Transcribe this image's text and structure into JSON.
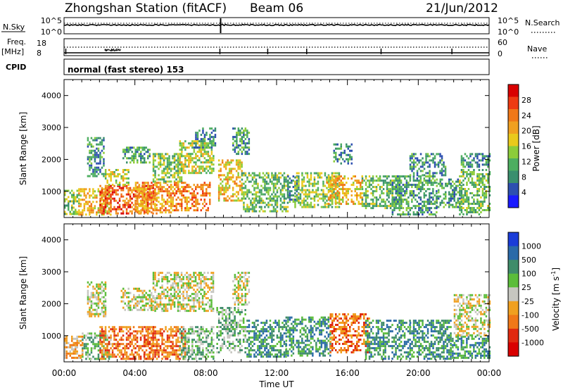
{
  "header": {
    "station": "Zhongshan Station (fitACF)",
    "beam": "Beam 06",
    "date": "21/Jun/2012"
  },
  "top_panels": {
    "nsky_label": "N.Sky",
    "nsky_ticks": [
      "10^5",
      "10^0"
    ],
    "nsearch_label": "N.Search",
    "nsearch_ticks": [
      "10^5",
      "10^0"
    ],
    "freq_label": "Freq.",
    "freq_unit": "[MHz]",
    "freq_ticks": [
      "18",
      "8"
    ],
    "nave_label": "Nave",
    "nave_ticks": [
      "60",
      "0"
    ],
    "cpid_label": "CPID",
    "cpid_value": "normal (fast stereo) 153"
  },
  "chart_data": [
    {
      "type": "heatmap",
      "name": "power",
      "ylabel": "Slant Range [km]",
      "ylim": [
        180,
        4500
      ],
      "yticks": [
        "4000",
        "3000",
        "2000",
        "1000"
      ],
      "xlim_hours": [
        0,
        24
      ],
      "colorbar": {
        "label": "Power [dB]",
        "ticks": [
          "28",
          "24",
          "20",
          "16",
          "12",
          "8",
          "4"
        ],
        "range": [
          0,
          30
        ],
        "colors": [
          "#1a1aff",
          "#2d4fb0",
          "#3a8f6e",
          "#4dae60",
          "#8ccc3a",
          "#e9c91c",
          "#f0a020",
          "#f07818",
          "#ee3a12",
          "#d90000"
        ]
      },
      "echo_regions": [
        {
          "t": [
            0.0,
            0.8
          ],
          "r": [
            300,
            1050
          ],
          "level": 12
        },
        {
          "t": [
            0.8,
            2.6
          ],
          "r": [
            300,
            1100
          ],
          "level": 18
        },
        {
          "t": [
            1.3,
            2.2
          ],
          "r": [
            1500,
            2700
          ],
          "level": 8
        },
        {
          "t": [
            2.0,
            5.2
          ],
          "r": [
            320,
            1200
          ],
          "level": 24
        },
        {
          "t": [
            2.3,
            3.6
          ],
          "r": [
            1200,
            1700
          ],
          "level": 14
        },
        {
          "t": [
            3.3,
            4.8
          ],
          "r": [
            1900,
            2400
          ],
          "level": 9
        },
        {
          "t": [
            4.0,
            6.0
          ],
          "r": [
            350,
            1300
          ],
          "level": 20
        },
        {
          "t": [
            5.0,
            6.6
          ],
          "r": [
            1300,
            2200
          ],
          "level": 12
        },
        {
          "t": [
            6.0,
            8.2
          ],
          "r": [
            400,
            1300
          ],
          "level": 22
        },
        {
          "t": [
            6.5,
            8.4
          ],
          "r": [
            1600,
            2600
          ],
          "level": 15
        },
        {
          "t": [
            7.3,
            8.5
          ],
          "r": [
            2400,
            3000
          ],
          "level": 8
        },
        {
          "t": [
            8.7,
            10.0
          ],
          "r": [
            700,
            2000
          ],
          "level": 18
        },
        {
          "t": [
            9.5,
            10.4
          ],
          "r": [
            2200,
            3000
          ],
          "level": 9
        },
        {
          "t": [
            10.0,
            12.6
          ],
          "r": [
            350,
            1600
          ],
          "level": 11
        },
        {
          "t": [
            12.6,
            13.2
          ],
          "r": [
            700,
            1500
          ],
          "level": 8
        },
        {
          "t": [
            13.0,
            15.5
          ],
          "r": [
            500,
            1600
          ],
          "level": 13
        },
        {
          "t": [
            14.8,
            16.8
          ],
          "r": [
            600,
            1500
          ],
          "level": 19
        },
        {
          "t": [
            15.2,
            16.2
          ],
          "r": [
            1900,
            2500
          ],
          "level": 8
        },
        {
          "t": [
            16.8,
            19.0
          ],
          "r": [
            450,
            1500
          ],
          "level": 11
        },
        {
          "t": [
            18.5,
            21.0
          ],
          "r": [
            300,
            1500
          ],
          "level": 9
        },
        {
          "t": [
            19.5,
            21.5
          ],
          "r": [
            1500,
            2200
          ],
          "level": 8
        },
        {
          "t": [
            21.0,
            22.4
          ],
          "r": [
            500,
            1400
          ],
          "level": 9
        },
        {
          "t": [
            22.3,
            24.0
          ],
          "r": [
            300,
            1700
          ],
          "level": 11
        },
        {
          "t": [
            22.4,
            24.0
          ],
          "r": [
            1800,
            2200
          ],
          "level": 8
        }
      ]
    },
    {
      "type": "heatmap",
      "name": "velocity",
      "ylabel": "Slant Range [km]",
      "ylim": [
        180,
        4500
      ],
      "yticks": [
        "4000",
        "3000",
        "2000",
        "1000"
      ],
      "xlim_hours": [
        0,
        24
      ],
      "colorbar": {
        "label": "Velocity [m s^-1]",
        "label_unit": "m s",
        "label_exponent": "-1",
        "ticks": [
          "1000",
          "500",
          "100",
          "25",
          "-25",
          "-100",
          "-500",
          "-1000"
        ],
        "colors": [
          "#1a3cd8",
          "#2a6aa8",
          "#3f8c6a",
          "#5bbd3a",
          "#c6c6c0",
          "#f0a020",
          "#f07818",
          "#e02a10",
          "#d90000"
        ]
      },
      "echo_regions": [
        {
          "t": [
            0.0,
            1.0
          ],
          "r": [
            300,
            1000
          ],
          "level": 5
        },
        {
          "t": [
            1.0,
            2.6
          ],
          "r": [
            300,
            1100
          ],
          "level": 3
        },
        {
          "t": [
            1.3,
            2.3
          ],
          "r": [
            1600,
            2700
          ],
          "level": 4
        },
        {
          "t": [
            2.0,
            5.0
          ],
          "r": [
            300,
            1300
          ],
          "level": 6
        },
        {
          "t": [
            3.2,
            5.0
          ],
          "r": [
            1800,
            2500
          ],
          "level": 4
        },
        {
          "t": [
            4.5,
            6.8
          ],
          "r": [
            300,
            1300
          ],
          "level": 6
        },
        {
          "t": [
            5.0,
            8.4
          ],
          "r": [
            1800,
            3000
          ],
          "level": 4
        },
        {
          "t": [
            6.5,
            8.4
          ],
          "r": [
            300,
            1300
          ],
          "level": 3
        },
        {
          "t": [
            8.6,
            10.2
          ],
          "r": [
            500,
            1900
          ],
          "level": 3
        },
        {
          "t": [
            9.5,
            10.4
          ],
          "r": [
            2000,
            3000
          ],
          "level": 4
        },
        {
          "t": [
            10.3,
            12.5
          ],
          "r": [
            350,
            1500
          ],
          "level": 2
        },
        {
          "t": [
            12.5,
            15.0
          ],
          "r": [
            400,
            1600
          ],
          "level": 2
        },
        {
          "t": [
            15.0,
            17.2
          ],
          "r": [
            500,
            1700
          ],
          "level": 6
        },
        {
          "t": [
            17.0,
            19.5
          ],
          "r": [
            300,
            1500
          ],
          "level": 2
        },
        {
          "t": [
            19.5,
            21.8
          ],
          "r": [
            300,
            1500
          ],
          "level": 2
        },
        {
          "t": [
            21.8,
            24.0
          ],
          "r": [
            300,
            1000
          ],
          "level": 2
        },
        {
          "t": [
            22.0,
            24.0
          ],
          "r": [
            1000,
            2300
          ],
          "level": 4
        }
      ]
    }
  ],
  "time_axis": {
    "ticks": [
      "00:00",
      "04:00",
      "08:00",
      "12:00",
      "16:00",
      "20:00",
      "00:00"
    ],
    "label": "Time UT"
  }
}
